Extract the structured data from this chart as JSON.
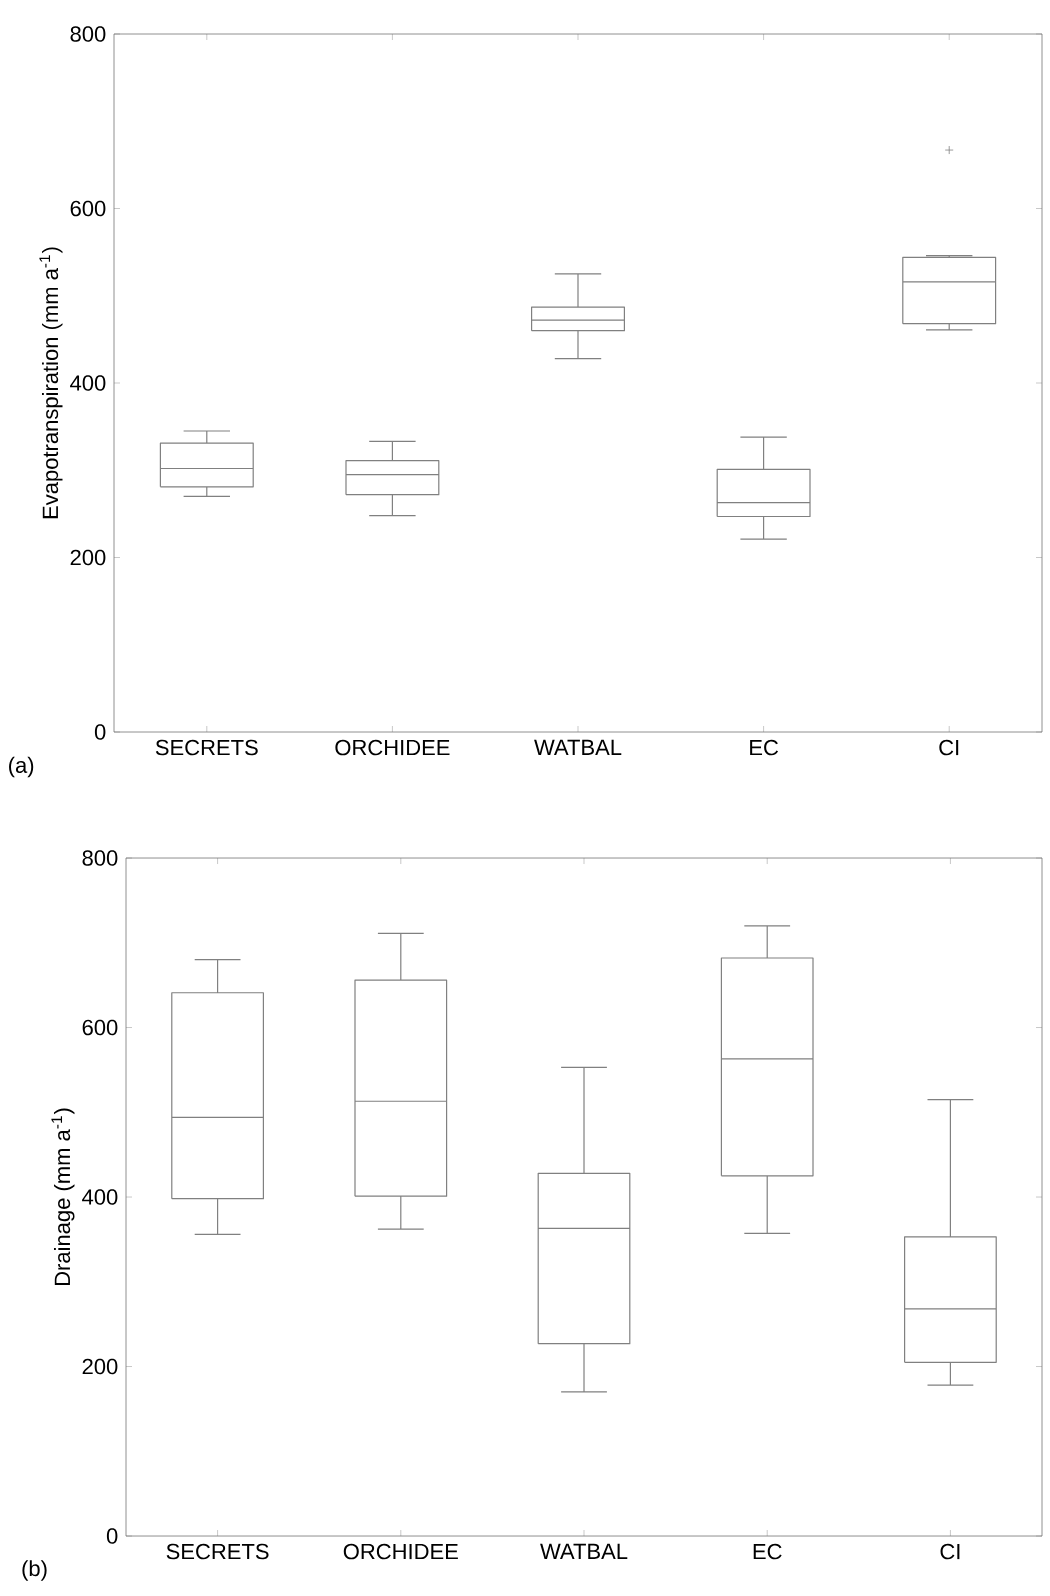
{
  "chart_data": [
    {
      "type": "box",
      "ylabel": "Evapotranspiration (mm a$^{-1}$)",
      "categories": [
        "SECRETS",
        "ORCHIDEE",
        "WATBAL",
        "EC",
        "CI"
      ],
      "color": "#808080",
      "marker": "cross",
      "ylim": [
        0,
        800
      ],
      "yticks": [
        0,
        200,
        400,
        600,
        800
      ],
      "annotations": [
        "(a)"
      ],
      "boxes": [
        {
          "low": 270,
          "q1": 281,
          "median": 302,
          "q3": 331,
          "high": 345
        },
        {
          "low": 248,
          "q1": 272,
          "median": 295,
          "q3": 311,
          "high": 333
        },
        {
          "low": 428,
          "q1": 460,
          "median": 472,
          "q3": 487,
          "high": 525
        },
        {
          "low": 221,
          "q1": 247,
          "median": 263,
          "q3": 301,
          "high": 338
        },
        {
          "low": 461,
          "q1": 468,
          "median": 516,
          "q3": 544,
          "high": 546,
          "outliers": [
            667
          ]
        }
      ]
    },
    {
      "type": "box",
      "ylabel": "Drainage (mm a$^{-1}$)",
      "categories": [
        "SECRETS",
        "ORCHIDEE",
        "WATBAL",
        "EC",
        "CI"
      ],
      "color": "#808080",
      "ylim": [
        0,
        800
      ],
      "yticks": [
        0,
        200,
        400,
        600,
        800
      ],
      "annotations": [
        "(b)"
      ],
      "boxes": [
        {
          "low": 356,
          "q1": 398,
          "median": 494,
          "q3": 641,
          "high": 680
        },
        {
          "low": 362,
          "q1": 401,
          "median": 513,
          "q3": 656,
          "high": 711
        },
        {
          "low": 170,
          "q1": 227,
          "median": 363,
          "q3": 428,
          "high": 553
        },
        {
          "low": 357,
          "q1": 425,
          "median": 563,
          "q3": 682,
          "high": 720
        },
        {
          "low": 178,
          "q1": 205,
          "median": 268,
          "q3": 353,
          "high": 515
        }
      ]
    }
  ]
}
